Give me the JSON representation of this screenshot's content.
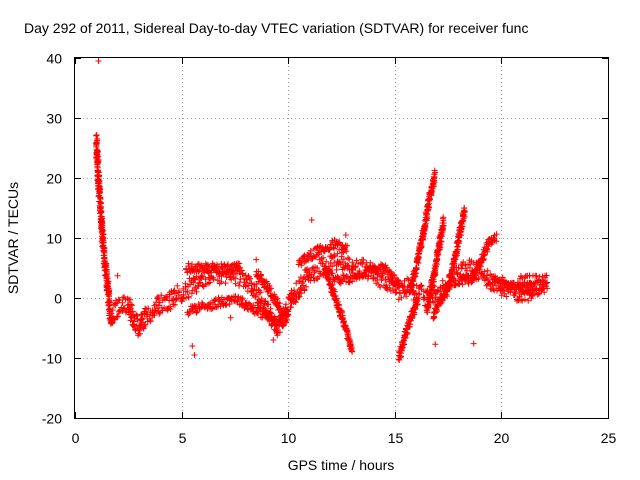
{
  "chart_data": {
    "type": "scatter",
    "title": "Day 292 of 2011, Sidereal Day-to-day VTEC variation (SDTVAR) for receiver func",
    "xlabel": "GPS time / hours",
    "ylabel": "SDTVAR / TECUs",
    "xlim": [
      0,
      25
    ],
    "ylim": [
      -20,
      40
    ],
    "xticks": [
      0,
      5,
      10,
      15,
      20,
      25
    ],
    "yticks": [
      -20,
      -10,
      0,
      10,
      20,
      30,
      40
    ],
    "xtick_labels": [
      "0",
      "5",
      "10",
      "15",
      "20",
      "25"
    ],
    "ytick_labels": [
      "-20",
      "-10",
      "0",
      "10",
      "20",
      "30",
      "40"
    ],
    "grid": true,
    "marker": "+",
    "color": "#ff0000",
    "series": [
      {
        "name": "SDTVAR",
        "trend": [
          [
            1.0,
            26
          ],
          [
            1.05,
            23
          ],
          [
            1.1,
            19
          ],
          [
            1.2,
            15
          ],
          [
            1.3,
            10
          ],
          [
            1.4,
            6
          ],
          [
            1.5,
            3
          ],
          [
            1.6,
            -1
          ],
          [
            1.7,
            -3
          ],
          [
            1.9,
            -2
          ],
          [
            2.2,
            -1
          ],
          [
            2.5,
            -1
          ],
          [
            2.8,
            -4
          ],
          [
            3.0,
            -5
          ],
          [
            3.3,
            -3
          ],
          [
            3.7,
            -2
          ],
          [
            4.0,
            -1
          ],
          [
            4.3,
            -1
          ],
          [
            4.6,
            0
          ],
          [
            5.0,
            1
          ],
          [
            5.5,
            2
          ],
          [
            6.0,
            3
          ],
          [
            6.5,
            4
          ],
          [
            7.0,
            4
          ],
          [
            7.5,
            4
          ],
          [
            8.0,
            3
          ],
          [
            8.5,
            1
          ],
          [
            8.8,
            -1
          ],
          [
            9.2,
            -3
          ],
          [
            9.5,
            -5
          ],
          [
            9.8,
            -3
          ],
          [
            10.2,
            0
          ],
          [
            10.6,
            2
          ],
          [
            11.0,
            4
          ],
          [
            11.5,
            5
          ],
          [
            12.0,
            6
          ],
          [
            12.5,
            6
          ],
          [
            13.0,
            5
          ],
          [
            13.5,
            5
          ],
          [
            14.0,
            4
          ],
          [
            14.5,
            3
          ],
          [
            15.0,
            2
          ],
          [
            15.3,
            1
          ],
          [
            15.6,
            2
          ],
          [
            16.0,
            1
          ],
          [
            16.5,
            0
          ],
          [
            17.0,
            1
          ],
          [
            17.5,
            2
          ],
          [
            18.0,
            4
          ],
          [
            18.5,
            5
          ],
          [
            19.0,
            4
          ],
          [
            19.5,
            3
          ],
          [
            20.0,
            2
          ],
          [
            20.5,
            1
          ],
          [
            21.0,
            1
          ],
          [
            21.5,
            1
          ]
        ],
        "branches": [
          [
            [
              5.2,
              5
            ],
            [
              6.0,
              5
            ],
            [
              7.0,
              5
            ],
            [
              7.8,
              5
            ]
          ],
          [
            [
              5.3,
              -2
            ],
            [
              6.5,
              -1
            ],
            [
              7.5,
              0
            ],
            [
              8.5,
              -2
            ],
            [
              9.5,
              -4
            ]
          ],
          [
            [
              8.5,
              4
            ],
            [
              9.0,
              2
            ],
            [
              9.5,
              -1
            ],
            [
              10.0,
              -4
            ]
          ],
          [
            [
              10.5,
              6
            ],
            [
              11.5,
              8
            ],
            [
              12.2,
              9
            ],
            [
              12.8,
              8
            ]
          ],
          [
            [
              11.7,
              5
            ],
            [
              12.2,
              0
            ],
            [
              12.6,
              -4
            ],
            [
              13.0,
              -9
            ]
          ],
          [
            [
              11.8,
              4
            ],
            [
              12.5,
              3
            ],
            [
              13.5,
              4
            ],
            [
              14.5,
              5
            ],
            [
              15.2,
              2
            ]
          ],
          [
            [
              15.2,
              -10
            ],
            [
              15.5,
              -6
            ],
            [
              15.8,
              -3
            ],
            [
              16.1,
              0
            ]
          ],
          [
            [
              15.7,
              1
            ],
            [
              16.0,
              5
            ],
            [
              16.3,
              10
            ],
            [
              16.6,
              16
            ],
            [
              16.9,
              21
            ]
          ],
          [
            [
              16.5,
              -2
            ],
            [
              16.8,
              3
            ],
            [
              17.1,
              9
            ],
            [
              17.3,
              13
            ]
          ],
          [
            [
              16.8,
              -3
            ],
            [
              17.5,
              2
            ],
            [
              17.9,
              8
            ],
            [
              18.3,
              15
            ]
          ],
          [
            [
              18.0,
              3
            ],
            [
              18.6,
              3
            ],
            [
              19.0,
              6
            ],
            [
              19.4,
              9
            ],
            [
              19.8,
              10
            ]
          ],
          [
            [
              19.5,
              3
            ],
            [
              20.5,
              2
            ],
            [
              21.5,
              1
            ],
            [
              22.2,
              2
            ]
          ],
          [
            [
              20.8,
              3
            ],
            [
              21.5,
              3
            ],
            [
              22.2,
              3
            ]
          ]
        ],
        "outliers": [
          [
            1.1,
            39.5
          ],
          [
            1.05,
            26.5
          ],
          [
            1.0,
            23.5
          ],
          [
            1.1,
            23.0
          ],
          [
            1.15,
            19.5
          ],
          [
            5.5,
            -8
          ],
          [
            5.6,
            -9.5
          ],
          [
            7.3,
            -3.3
          ],
          [
            8.5,
            6.4
          ],
          [
            9.3,
            -7
          ],
          [
            11.1,
            13
          ],
          [
            12.7,
            10.5
          ],
          [
            16.9,
            -7.7
          ],
          [
            18.7,
            -7.6
          ],
          [
            2.0,
            3.7
          ]
        ]
      }
    ]
  }
}
